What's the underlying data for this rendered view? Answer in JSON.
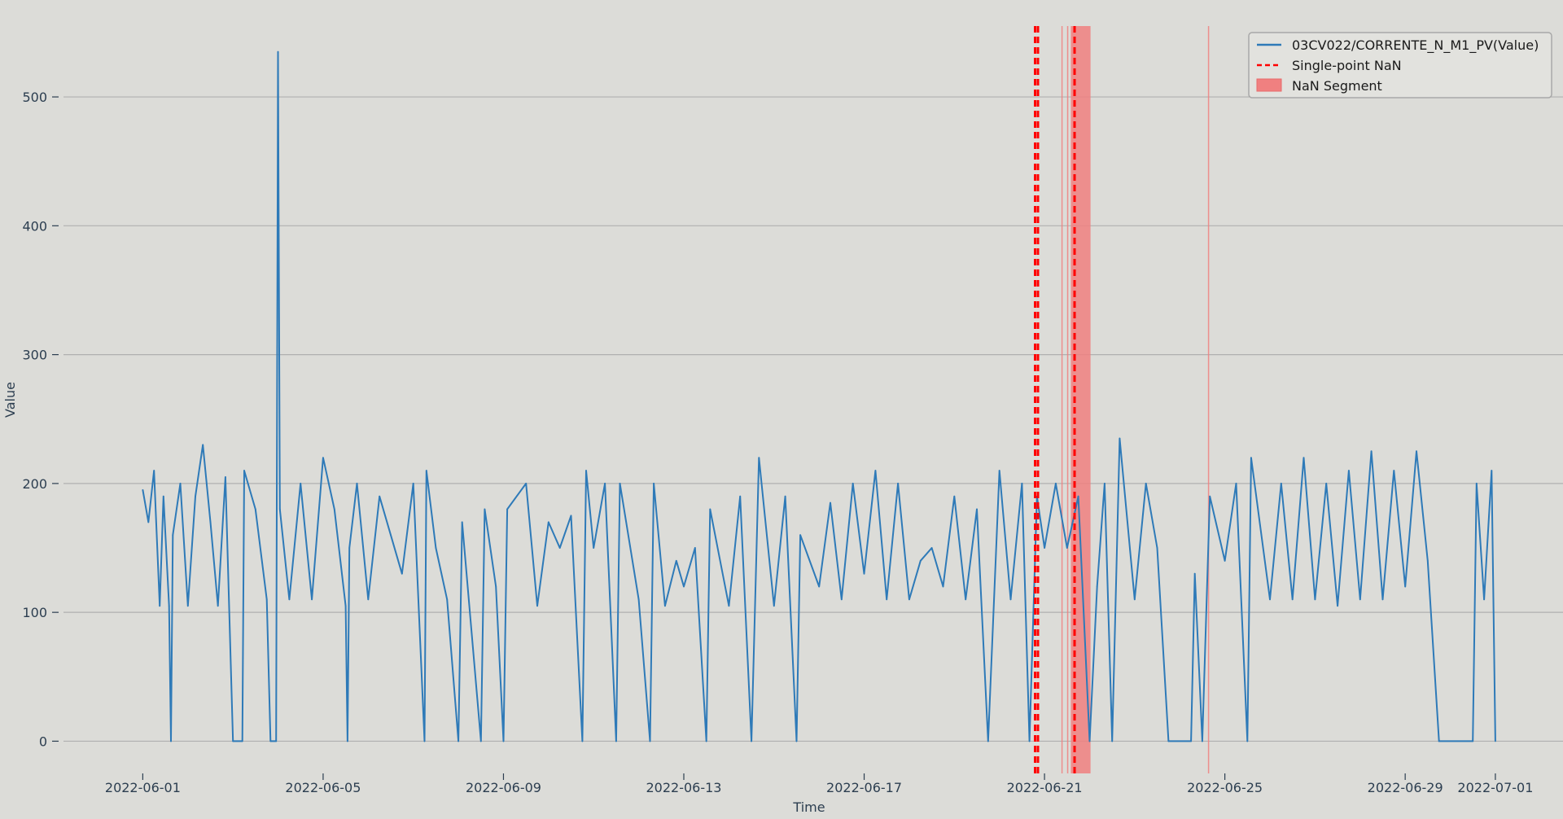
{
  "chart_data": {
    "type": "line",
    "title": "",
    "xlabel": "Time",
    "ylabel": "Value",
    "xlim": [
      "2022-05-28T20:00",
      "2022-07-02T12:00"
    ],
    "ylim": [
      -25,
      555
    ],
    "grid": "horizontal",
    "legend_position": "top-right",
    "yticks": [
      0,
      100,
      200,
      300,
      400,
      500
    ],
    "xticks": [
      "2022-06-01",
      "2022-06-05",
      "2022-06-09",
      "2022-06-13",
      "2022-06-17",
      "2022-06-21",
      "2022-06-25",
      "2022-06-29",
      "2022-07-01"
    ],
    "series": [
      {
        "name": "03CV022/CORRENTE_N_M1_PV(Value)",
        "color": "#2e7ab8",
        "points": [
          [
            "2022-06-01T00:00",
            195
          ],
          [
            "2022-06-01T03:00",
            170
          ],
          [
            "2022-06-01T06:00",
            210
          ],
          [
            "2022-06-01T09:00",
            105
          ],
          [
            "2022-06-01T11:00",
            190
          ],
          [
            "2022-06-01T14:00",
            105
          ],
          [
            "2022-06-01T15:00",
            0
          ],
          [
            "2022-06-01T16:00",
            160
          ],
          [
            "2022-06-01T20:00",
            200
          ],
          [
            "2022-06-02T00:00",
            105
          ],
          [
            "2022-06-02T04:00",
            190
          ],
          [
            "2022-06-02T08:00",
            230
          ],
          [
            "2022-06-02T12:00",
            170
          ],
          [
            "2022-06-02T16:00",
            105
          ],
          [
            "2022-06-02T20:00",
            205
          ],
          [
            "2022-06-03T00:00",
            0
          ],
          [
            "2022-06-03T05:00",
            0
          ],
          [
            "2022-06-03T06:00",
            210
          ],
          [
            "2022-06-03T12:00",
            180
          ],
          [
            "2022-06-03T18:00",
            110
          ],
          [
            "2022-06-03T20:00",
            0
          ],
          [
            "2022-06-03T23:00",
            0
          ],
          [
            "2022-06-04T00:00",
            535
          ],
          [
            "2022-06-04T01:00",
            180
          ],
          [
            "2022-06-04T06:00",
            110
          ],
          [
            "2022-06-04T12:00",
            200
          ],
          [
            "2022-06-04T18:00",
            110
          ],
          [
            "2022-06-05T00:00",
            220
          ],
          [
            "2022-06-05T06:00",
            180
          ],
          [
            "2022-06-05T12:00",
            105
          ],
          [
            "2022-06-05T13:00",
            0
          ],
          [
            "2022-06-05T14:00",
            150
          ],
          [
            "2022-06-05T18:00",
            200
          ],
          [
            "2022-06-06T00:00",
            110
          ],
          [
            "2022-06-06T06:00",
            190
          ],
          [
            "2022-06-06T12:00",
            160
          ],
          [
            "2022-06-06T18:00",
            130
          ],
          [
            "2022-06-07T00:00",
            200
          ],
          [
            "2022-06-07T06:00",
            0
          ],
          [
            "2022-06-07T07:00",
            210
          ],
          [
            "2022-06-07T12:00",
            150
          ],
          [
            "2022-06-07T18:00",
            110
          ],
          [
            "2022-06-08T00:00",
            0
          ],
          [
            "2022-06-08T02:00",
            170
          ],
          [
            "2022-06-08T12:00",
            0
          ],
          [
            "2022-06-08T14:00",
            180
          ],
          [
            "2022-06-08T20:00",
            120
          ],
          [
            "2022-06-09T00:00",
            0
          ],
          [
            "2022-06-09T02:00",
            180
          ],
          [
            "2022-06-09T12:00",
            200
          ],
          [
            "2022-06-09T18:00",
            105
          ],
          [
            "2022-06-10T00:00",
            170
          ],
          [
            "2022-06-10T06:00",
            150
          ],
          [
            "2022-06-10T12:00",
            175
          ],
          [
            "2022-06-10T18:00",
            0
          ],
          [
            "2022-06-10T20:00",
            210
          ],
          [
            "2022-06-11T00:00",
            150
          ],
          [
            "2022-06-11T06:00",
            200
          ],
          [
            "2022-06-11T12:00",
            0
          ],
          [
            "2022-06-11T14:00",
            200
          ],
          [
            "2022-06-12T00:00",
            110
          ],
          [
            "2022-06-12T06:00",
            0
          ],
          [
            "2022-06-12T08:00",
            200
          ],
          [
            "2022-06-12T14:00",
            105
          ],
          [
            "2022-06-12T20:00",
            140
          ],
          [
            "2022-06-13T00:00",
            120
          ],
          [
            "2022-06-13T06:00",
            150
          ],
          [
            "2022-06-13T12:00",
            0
          ],
          [
            "2022-06-13T14:00",
            180
          ],
          [
            "2022-06-14T00:00",
            105
          ],
          [
            "2022-06-14T06:00",
            190
          ],
          [
            "2022-06-14T12:00",
            0
          ],
          [
            "2022-06-14T16:00",
            220
          ],
          [
            "2022-06-15T00:00",
            105
          ],
          [
            "2022-06-15T06:00",
            190
          ],
          [
            "2022-06-15T12:00",
            0
          ],
          [
            "2022-06-15T14:00",
            160
          ],
          [
            "2022-06-16T00:00",
            120
          ],
          [
            "2022-06-16T06:00",
            185
          ],
          [
            "2022-06-16T12:00",
            110
          ],
          [
            "2022-06-16T18:00",
            200
          ],
          [
            "2022-06-17T00:00",
            130
          ],
          [
            "2022-06-17T06:00",
            210
          ],
          [
            "2022-06-17T12:00",
            110
          ],
          [
            "2022-06-17T18:00",
            200
          ],
          [
            "2022-06-18T00:00",
            110
          ],
          [
            "2022-06-18T06:00",
            140
          ],
          [
            "2022-06-18T12:00",
            150
          ],
          [
            "2022-06-18T18:00",
            120
          ],
          [
            "2022-06-19T00:00",
            190
          ],
          [
            "2022-06-19T06:00",
            110
          ],
          [
            "2022-06-19T12:00",
            180
          ],
          [
            "2022-06-19T18:00",
            0
          ],
          [
            "2022-06-20T00:00",
            210
          ],
          [
            "2022-06-20T06:00",
            110
          ],
          [
            "2022-06-20T12:00",
            200
          ],
          [
            "2022-06-20T16:00",
            0
          ],
          [
            "2022-06-20T20:00",
            190
          ],
          [
            "2022-06-21T00:00",
            150
          ],
          [
            "2022-06-21T06:00",
            200
          ],
          [
            "2022-06-21T12:00",
            150
          ],
          [
            "2022-06-21T18:00",
            190
          ],
          [
            "2022-06-22T00:00",
            0
          ],
          [
            "2022-06-22T04:00",
            120
          ],
          [
            "2022-06-22T08:00",
            200
          ],
          [
            "2022-06-22T12:00",
            0
          ],
          [
            "2022-06-22T16:00",
            235
          ],
          [
            "2022-06-23T00:00",
            110
          ],
          [
            "2022-06-23T06:00",
            200
          ],
          [
            "2022-06-23T12:00",
            150
          ],
          [
            "2022-06-23T18:00",
            0
          ],
          [
            "2022-06-24T06:00",
            0
          ],
          [
            "2022-06-24T08:00",
            130
          ],
          [
            "2022-06-24T12:00",
            0
          ],
          [
            "2022-06-24T16:00",
            190
          ],
          [
            "2022-06-25T00:00",
            140
          ],
          [
            "2022-06-25T06:00",
            200
          ],
          [
            "2022-06-25T12:00",
            0
          ],
          [
            "2022-06-25T14:00",
            220
          ],
          [
            "2022-06-26T00:00",
            110
          ],
          [
            "2022-06-26T06:00",
            200
          ],
          [
            "2022-06-26T12:00",
            110
          ],
          [
            "2022-06-26T18:00",
            220
          ],
          [
            "2022-06-27T00:00",
            110
          ],
          [
            "2022-06-27T06:00",
            200
          ],
          [
            "2022-06-27T12:00",
            105
          ],
          [
            "2022-06-27T18:00",
            210
          ],
          [
            "2022-06-28T00:00",
            110
          ],
          [
            "2022-06-28T06:00",
            225
          ],
          [
            "2022-06-28T12:00",
            110
          ],
          [
            "2022-06-28T18:00",
            210
          ],
          [
            "2022-06-29T00:00",
            120
          ],
          [
            "2022-06-29T06:00",
            225
          ],
          [
            "2022-06-29T12:00",
            140
          ],
          [
            "2022-06-29T18:00",
            0
          ],
          [
            "2022-06-30T12:00",
            0
          ],
          [
            "2022-06-30T14:00",
            200
          ],
          [
            "2022-06-30T18:00",
            110
          ],
          [
            "2022-06-30T22:00",
            210
          ],
          [
            "2022-07-01T00:00",
            0
          ]
        ]
      },
      {
        "name": "Single-point NaN",
        "color": "#ff0000",
        "style": "dashed",
        "x": [
          "2022-06-20T19:00",
          "2022-06-20T20:30",
          "2022-06-21T16:00"
        ]
      },
      {
        "name": "NaN Segment",
        "color": "#f08080",
        "style": "band",
        "segments": [
          [
            "2022-06-21T09:00",
            "2022-06-21T09:20"
          ],
          [
            "2022-06-21T12:00",
            "2022-06-21T12:40"
          ],
          [
            "2022-06-21T14:00",
            "2022-06-22T00:30"
          ],
          [
            "2022-06-24T15:00",
            "2022-06-24T15:20"
          ]
        ]
      }
    ]
  }
}
